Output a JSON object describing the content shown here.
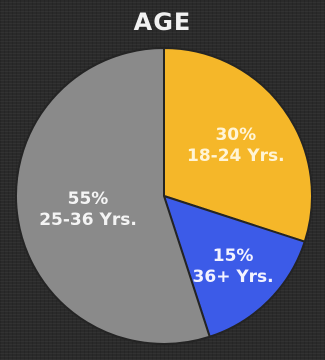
{
  "chart_data": {
    "type": "pie",
    "title": "AGE",
    "slices": [
      {
        "label": "18-24 Yrs.",
        "value": 30,
        "value_label": "30%",
        "color": "#f5b729",
        "text_color": "#fff4d6"
      },
      {
        "label": "36+ Yrs.",
        "value": 15,
        "value_label": "15%",
        "color": "#3c5be8",
        "text_color": "#f2f2ff"
      },
      {
        "label": "25-36 Yrs.",
        "value": 55,
        "value_label": "55%",
        "color": "#8a8a8a",
        "text_color": "#f4f4f4"
      }
    ],
    "start_angle": "12 o'clock",
    "direction": "clockwise"
  }
}
